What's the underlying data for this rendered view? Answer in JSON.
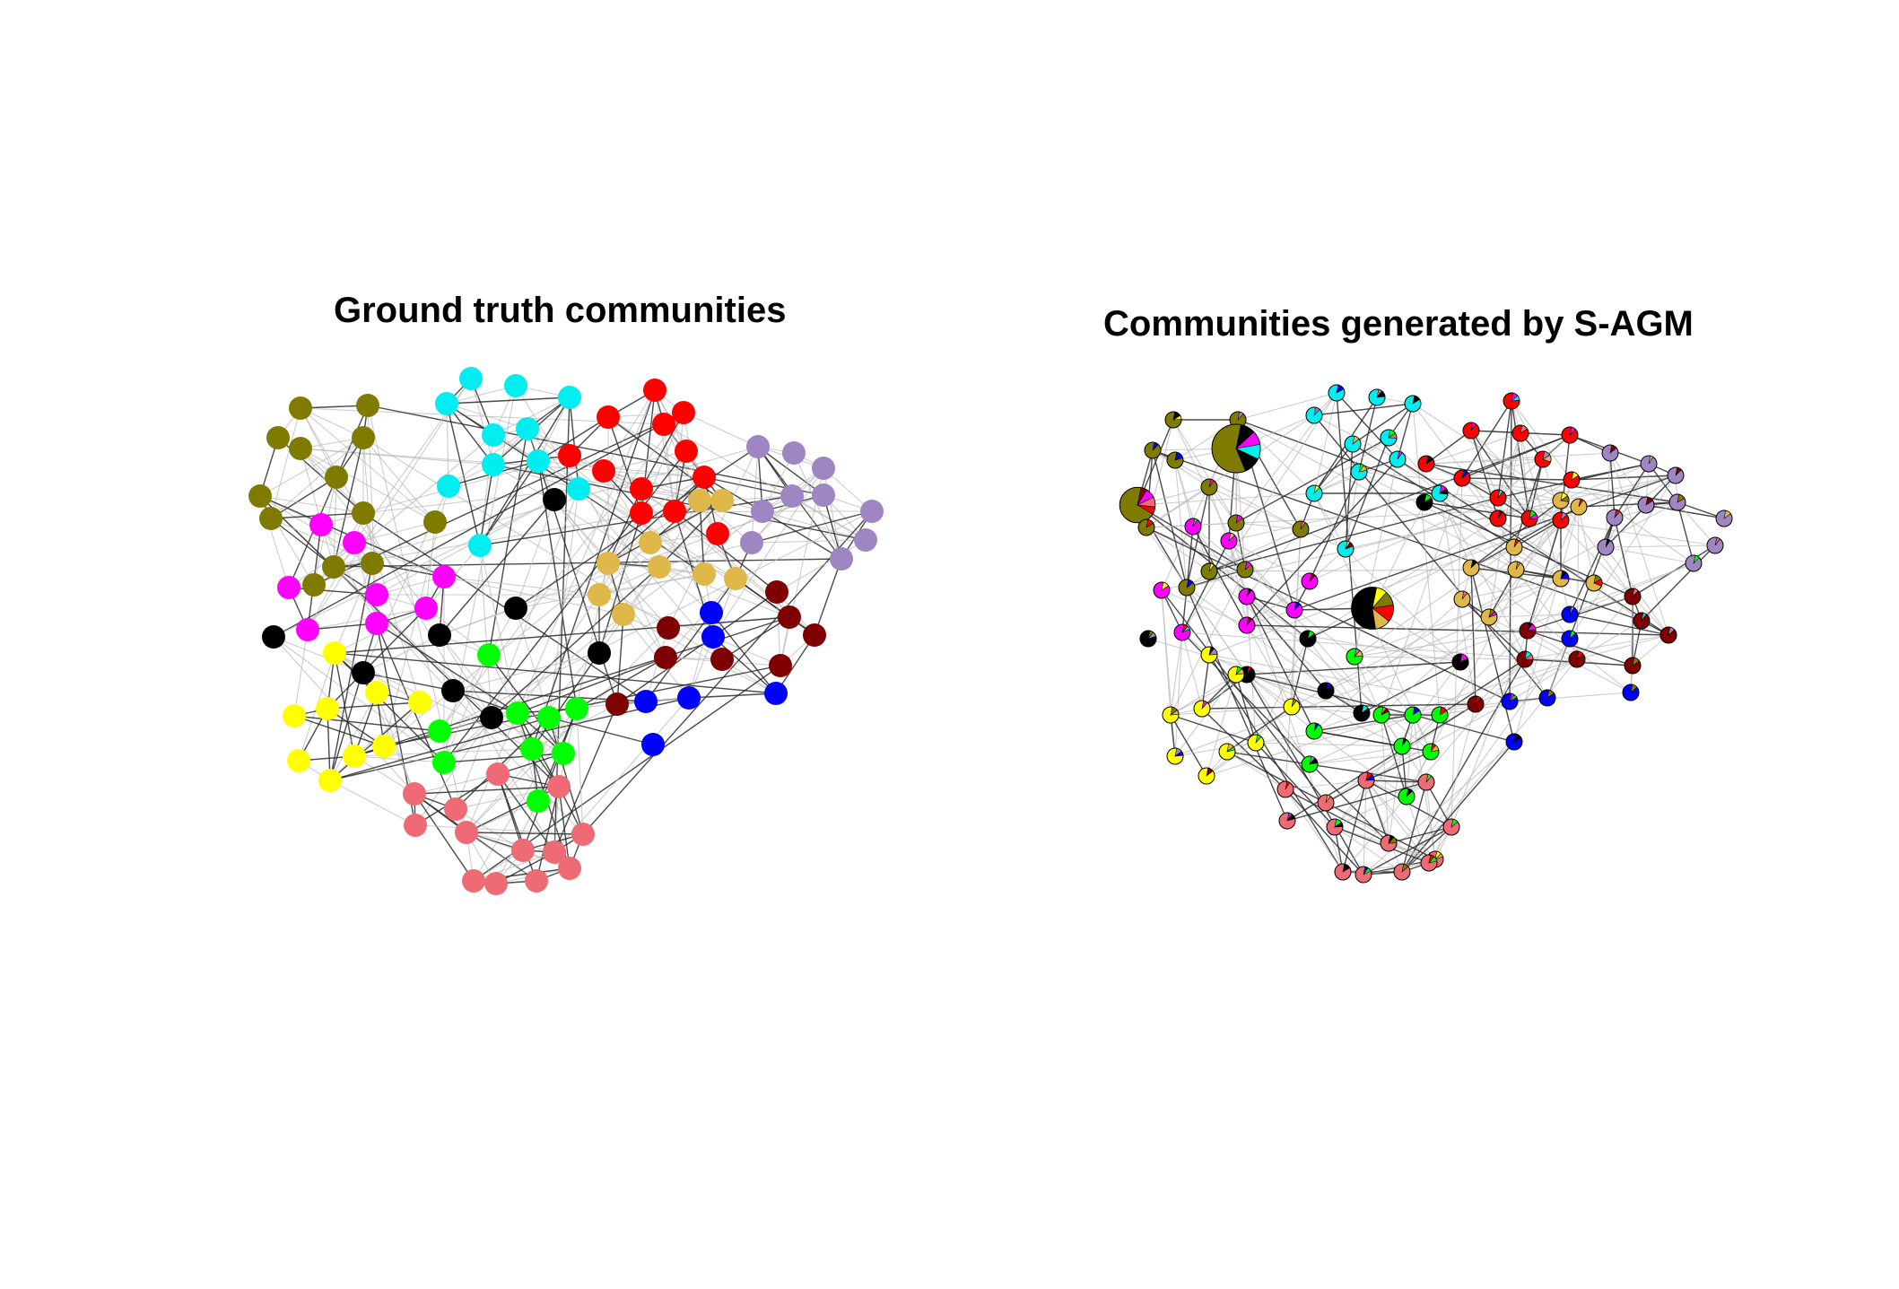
{
  "panels": [
    {
      "id": "left",
      "title": "Ground truth communities"
    },
    {
      "id": "right",
      "title": "Communities generated by S-AGM"
    }
  ],
  "communities": {
    "olive": "#7f7a00",
    "cyan": "#00eef0",
    "red": "#ff0000",
    "lavender": "#9f86c2",
    "magenta": "#ff00ff",
    "black": "#000000",
    "tan": "#e0b84a",
    "maroon": "#7f0000",
    "blue": "#0000ff",
    "yellow": "#ffff00",
    "green": "#00ff00",
    "salmon": "#ee6a74"
  }
}
